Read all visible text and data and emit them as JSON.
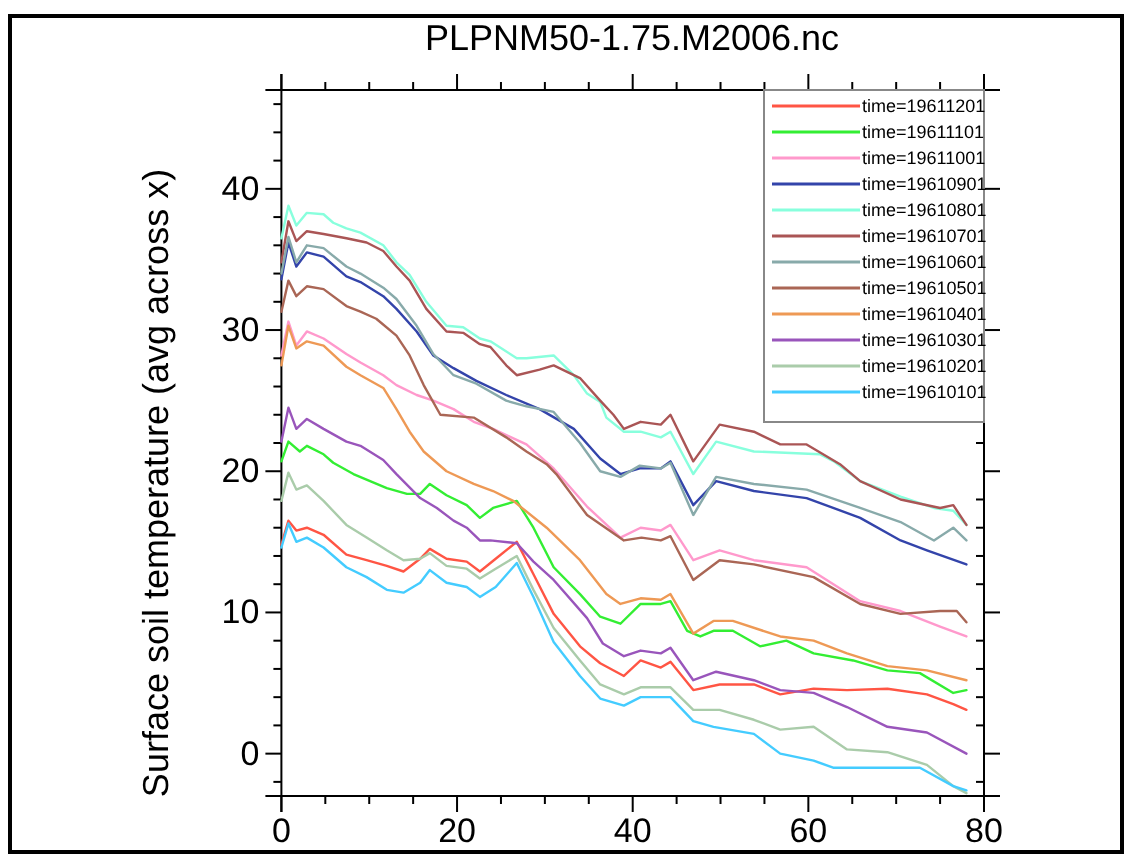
{
  "chart_data": {
    "type": "line",
    "title": "PLPNM50-1.75.M2006.nc",
    "ylabel": "Surface soil temperature (avg across x)",
    "xlim": [
      0,
      80
    ],
    "xticks": [
      0,
      {
        "value": 5,
        "label": null
      },
      {
        "value": 10,
        "label": null
      },
      {
        "value": 15,
        "label": null
      },
      20,
      {
        "value": 25,
        "label": null
      },
      {
        "value": 30,
        "label": null
      },
      {
        "value": 35,
        "label": null
      },
      40,
      {
        "value": 45,
        "label": null
      },
      {
        "value": 50,
        "label": null
      },
      {
        "value": 55,
        "label": null
      },
      60,
      {
        "value": 65,
        "label": null
      },
      {
        "value": 70,
        "label": null
      },
      {
        "value": 75,
        "label": null
      },
      80
    ],
    "ylim": [
      -3,
      47
    ],
    "yticks": [
      {
        "value": -2,
        "label": null
      },
      0,
      {
        "value": 2,
        "label": null
      },
      {
        "value": 4,
        "label": null
      },
      {
        "value": 6,
        "label": null
      },
      {
        "value": 8,
        "label": null
      },
      10,
      {
        "value": 12,
        "label": null
      },
      {
        "value": 14,
        "label": null
      },
      {
        "value": 16,
        "label": null
      },
      {
        "value": 18,
        "label": null
      },
      20,
      {
        "value": 22,
        "label": null
      },
      {
        "value": 24,
        "label": null
      },
      {
        "value": 26,
        "label": null
      },
      {
        "value": 28,
        "label": null
      },
      30,
      {
        "value": 32,
        "label": null
      },
      {
        "value": 34,
        "label": null
      },
      {
        "value": 36,
        "label": null
      },
      {
        "value": 38,
        "label": null
      },
      40,
      {
        "value": 42,
        "label": null
      },
      {
        "value": 44,
        "label": null
      },
      {
        "value": 46,
        "label": null
      }
    ],
    "grid": false,
    "legend": "top right",
    "marker": "none",
    "line_style": "solid",
    "series": [
      {
        "name": "time=19611201",
        "color": "#ff5544",
        "x": [
          0,
          0.8,
          1.7,
          2.9,
          4.8,
          7.4,
          9.7,
          12,
          13.9,
          15.8,
          16.9,
          18.8,
          21.1,
          22.6,
          24.4,
          26.8,
          28.7,
          31,
          34,
          36.3,
          39,
          40.9,
          43.2,
          44.3,
          46.9,
          49.9,
          53.8,
          56.8,
          60.6,
          64.4,
          69,
          73.5,
          76.5,
          78
        ],
        "values": [
          14.8,
          16.5,
          15.8,
          16,
          15.5,
          14.1,
          13.7,
          13.3,
          12.9,
          13.8,
          14.5,
          13.8,
          13.6,
          12.9,
          13.8,
          15,
          12.7,
          9.9,
          7.6,
          6.4,
          5.5,
          6.6,
          6.1,
          6.5,
          4.5,
          4.9,
          4.9,
          4.2,
          4.6,
          4.5,
          4.6,
          4.2,
          3.5,
          3.1
        ]
      },
      {
        "name": "time=19611101",
        "color": "#33ee33",
        "x": [
          0,
          0.8,
          2.1,
          2.9,
          4.8,
          5.9,
          8.2,
          12,
          14.3,
          15.8,
          16.9,
          18.8,
          21.1,
          22.6,
          24.1,
          26.8,
          28.7,
          31,
          34,
          36.3,
          38.6,
          40.9,
          43.2,
          44.3,
          46.2,
          47.7,
          49.2,
          51.4,
          54.5,
          57.5,
          60.6,
          65.1,
          69,
          72.7,
          76.5,
          78
        ],
        "values": [
          20.7,
          22.1,
          21.4,
          21.8,
          21.2,
          20.6,
          19.8,
          18.8,
          18.4,
          18.4,
          19.1,
          18.3,
          17.6,
          16.7,
          17.4,
          17.9,
          16,
          13.2,
          11.3,
          9.7,
          9.2,
          10.6,
          10.6,
          10.8,
          8.7,
          8.3,
          8.7,
          8.7,
          7.6,
          8,
          7.1,
          6.6,
          5.9,
          5.7,
          4.3,
          4.5
        ]
      },
      {
        "name": "time=19611001",
        "color": "#ff99cc",
        "x": [
          0,
          0.8,
          1.7,
          2.9,
          4.8,
          7.4,
          9,
          11.6,
          13.1,
          15.4,
          17.3,
          19.6,
          21.9,
          24.1,
          27.9,
          31,
          34.8,
          38.6,
          40.9,
          43.2,
          44.3,
          46.9,
          49.9,
          53.8,
          59.8,
          65.9,
          70.5,
          75,
          78
        ],
        "values": [
          28.2,
          30.6,
          28.9,
          29.9,
          29.4,
          28.3,
          27.7,
          26.8,
          26.1,
          25.4,
          25,
          24.4,
          23.5,
          23,
          21.9,
          20.2,
          17.5,
          15.3,
          16,
          15.8,
          16.2,
          13.7,
          14.4,
          13.7,
          13.2,
          10.8,
          10.1,
          9,
          8.3
        ]
      },
      {
        "name": "time=19610901",
        "color": "#3344aa",
        "x": [
          0,
          0.8,
          1.7,
          2.9,
          4.8,
          7.4,
          9,
          11.6,
          13.1,
          15.4,
          17.3,
          19.6,
          22.2,
          25.6,
          29.4,
          33.3,
          36.3,
          38.6,
          40.8,
          43.2,
          44.3,
          46.9,
          49.5,
          53.8,
          59.8,
          65.9,
          70.5,
          73.5,
          78
        ],
        "values": [
          33.6,
          36.2,
          34.5,
          35.5,
          35.2,
          33.8,
          33.4,
          32.4,
          31.5,
          29.9,
          28.2,
          27.3,
          26.4,
          25.4,
          24.4,
          23,
          20.9,
          19.8,
          20.2,
          20.2,
          20.7,
          17.6,
          19.3,
          18.6,
          18.1,
          16.7,
          15.1,
          14.4,
          13.4
        ]
      },
      {
        "name": "time=19610801",
        "color": "#88ffdd",
        "x": [
          0,
          0.8,
          1.7,
          2.9,
          4.8,
          5.9,
          7.4,
          9,
          11.6,
          13.1,
          14.6,
          16.5,
          18.8,
          20.7,
          22.6,
          23.8,
          26.8,
          27.9,
          31,
          33.3,
          34.8,
          36.3,
          37,
          39,
          40.9,
          43.2,
          44.3,
          46.9,
          49.5,
          53.8,
          61.3,
          62.9,
          65.9,
          70.5,
          74.3,
          76.5,
          78
        ],
        "values": [
          36.5,
          38.8,
          37.4,
          38.3,
          38.2,
          37.6,
          37.2,
          36.9,
          36,
          34.8,
          33.9,
          32,
          30.3,
          30.2,
          29.4,
          29.2,
          28,
          28,
          28.2,
          26.8,
          25.5,
          24.9,
          23.8,
          22.8,
          22.8,
          22.4,
          22.8,
          19.8,
          22.1,
          21.4,
          21.2,
          20.7,
          19.3,
          18.2,
          17.4,
          17.2,
          16.2
        ]
      },
      {
        "name": "time=19610701",
        "color": "#aa5555",
        "x": [
          0,
          0.8,
          1.7,
          2.9,
          4.8,
          7.4,
          9.7,
          11.6,
          13.1,
          14.6,
          16.5,
          18.8,
          20.7,
          22.6,
          23.8,
          25.6,
          26.8,
          29.4,
          31,
          34,
          36.3,
          37.8,
          39,
          40.9,
          43.2,
          44.3,
          46.9,
          49.9,
          53.8,
          56.8,
          59.8,
          63.6,
          65.9,
          70.5,
          75,
          76.5,
          78
        ],
        "values": [
          34.8,
          37.7,
          36.3,
          37,
          36.8,
          36.5,
          36.2,
          35.6,
          34.5,
          33.5,
          31.5,
          29.9,
          29.8,
          29,
          28.8,
          27.5,
          26.8,
          27.2,
          27.5,
          26.6,
          25,
          24,
          23,
          23.5,
          23.3,
          24,
          20.7,
          23.3,
          22.8,
          21.9,
          21.9,
          20.5,
          19.3,
          18,
          17.4,
          17.6,
          16.2
        ]
      },
      {
        "name": "time=19610601",
        "color": "#88aaaa",
        "x": [
          0,
          0.8,
          1.7,
          2.9,
          4.8,
          7.4,
          9,
          11.6,
          13.1,
          15.4,
          17.3,
          19.6,
          22.2,
          25.6,
          27.9,
          31,
          34,
          36.3,
          38.6,
          40.8,
          43.2,
          44.3,
          46.9,
          49.5,
          53.8,
          59.8,
          65.9,
          70.5,
          74.3,
          76.5,
          78
        ],
        "values": [
          34,
          36.6,
          34.8,
          36,
          35.8,
          34.5,
          34,
          33,
          32.2,
          30.3,
          28.3,
          26.8,
          26.2,
          25,
          24.6,
          24.2,
          22,
          20,
          19.6,
          20.4,
          20.2,
          20.6,
          16.9,
          19.6,
          19.1,
          18.7,
          17.4,
          16.4,
          15.1,
          16,
          15.1
        ]
      },
      {
        "name": "time=19610501",
        "color": "#aa6655",
        "x": [
          0,
          0.8,
          1.7,
          2.9,
          4.8,
          7.4,
          9,
          10.8,
          13.1,
          14.6,
          16.2,
          18.1,
          21.9,
          25.6,
          27.9,
          30.2,
          31.3,
          34.8,
          39,
          41,
          43.2,
          44.3,
          46.9,
          49.9,
          53.8,
          60.6,
          65.9,
          70.5,
          75,
          76.9,
          78
        ],
        "values": [
          31.3,
          33.5,
          32.4,
          33.1,
          32.9,
          31.7,
          31.3,
          30.8,
          29.6,
          28.2,
          26.1,
          24,
          23.8,
          22.4,
          21.4,
          20.5,
          19.8,
          16.9,
          15.1,
          15.3,
          15.1,
          15.4,
          12.3,
          13.7,
          13.4,
          12.5,
          10.6,
          9.9,
          10.1,
          10.1,
          9.3
        ]
      },
      {
        "name": "time=19610401",
        "color": "#ee9955",
        "x": [
          0,
          0.8,
          1.7,
          2.9,
          4.8,
          7.4,
          9,
          11.6,
          13.1,
          14.6,
          16.2,
          18.8,
          21.9,
          24.1,
          26.4,
          30.2,
          34,
          37,
          38.6,
          40.9,
          43.2,
          44.3,
          46.9,
          49.2,
          51.4,
          56.8,
          60.6,
          64.4,
          69,
          73.5,
          78
        ],
        "values": [
          27.5,
          30.3,
          28.7,
          29.2,
          28.9,
          27.4,
          26.8,
          25.9,
          24.4,
          22.8,
          21.4,
          20,
          19.1,
          18.6,
          17.9,
          16,
          13.7,
          11.3,
          10.6,
          11,
          10.9,
          11.3,
          8.5,
          9.4,
          9.4,
          8.3,
          8,
          7.1,
          6.2,
          5.9,
          5.2
        ]
      },
      {
        "name": "time=19610301",
        "color": "#9955bb",
        "x": [
          0,
          0.8,
          1.7,
          2.9,
          4.8,
          7.4,
          9,
          11.6,
          13.1,
          15.8,
          17.7,
          19.6,
          21.1,
          22.6,
          23.8,
          26.8,
          28.7,
          31,
          34.8,
          36.6,
          39,
          40.9,
          43.2,
          44.3,
          46.9,
          49.5,
          53.8,
          56.8,
          60.6,
          64.4,
          69,
          73.5,
          78
        ],
        "values": [
          22.1,
          24.5,
          23,
          23.7,
          23,
          22.1,
          21.8,
          20.8,
          19.8,
          18.1,
          17.4,
          16.5,
          16,
          15.1,
          15.1,
          14.9,
          13.6,
          12.3,
          9.6,
          7.8,
          6.9,
          7.3,
          7.1,
          7.5,
          5.2,
          5.8,
          5.2,
          4.5,
          4.3,
          3.3,
          1.9,
          1.5,
          0
        ]
      },
      {
        "name": "time=19610201",
        "color": "#aaccaa",
        "x": [
          0,
          0.8,
          1.7,
          2.9,
          4.8,
          7.4,
          9.7,
          12,
          13.9,
          15.8,
          16.9,
          18.8,
          21.1,
          22.6,
          24.4,
          26.8,
          28.7,
          31,
          34,
          36.3,
          39,
          40.9,
          44.3,
          46.9,
          49.9,
          53.8,
          56.8,
          60.6,
          64.4,
          69,
          73.5,
          76.5,
          78
        ],
        "values": [
          17.9,
          19.9,
          18.7,
          19,
          17.9,
          16.2,
          15.3,
          14.4,
          13.7,
          13.8,
          14.2,
          13.3,
          13.1,
          12.4,
          13.1,
          14,
          11.6,
          8.9,
          6.6,
          4.9,
          4.2,
          4.7,
          4.7,
          3.1,
          3.1,
          2.4,
          1.7,
          1.9,
          0.3,
          0.1,
          -0.8,
          -2.3,
          -2.8
        ]
      },
      {
        "name": "time=19610101",
        "color": "#44ccff",
        "x": [
          0,
          0.8,
          1.7,
          2.9,
          4.8,
          7.4,
          9.7,
          12,
          13.9,
          15.8,
          16.9,
          18.8,
          21.1,
          22.6,
          24.4,
          26.8,
          28.7,
          31,
          34,
          36.3,
          39,
          40.9,
          44.3,
          46.9,
          49.2,
          53.8,
          56.8,
          60.6,
          62.9,
          65.1,
          69,
          72.7,
          76.5,
          78
        ],
        "values": [
          14.6,
          16.3,
          15,
          15.3,
          14.6,
          13.2,
          12.5,
          11.6,
          11.4,
          12.1,
          13,
          12.1,
          11.8,
          11.1,
          11.8,
          13.5,
          11.1,
          7.9,
          5.5,
          3.9,
          3.4,
          4,
          4,
          2.3,
          1.9,
          1.4,
          0,
          -0.5,
          -1,
          -1,
          -1,
          -1,
          -2.3,
          -2.6
        ]
      }
    ]
  }
}
